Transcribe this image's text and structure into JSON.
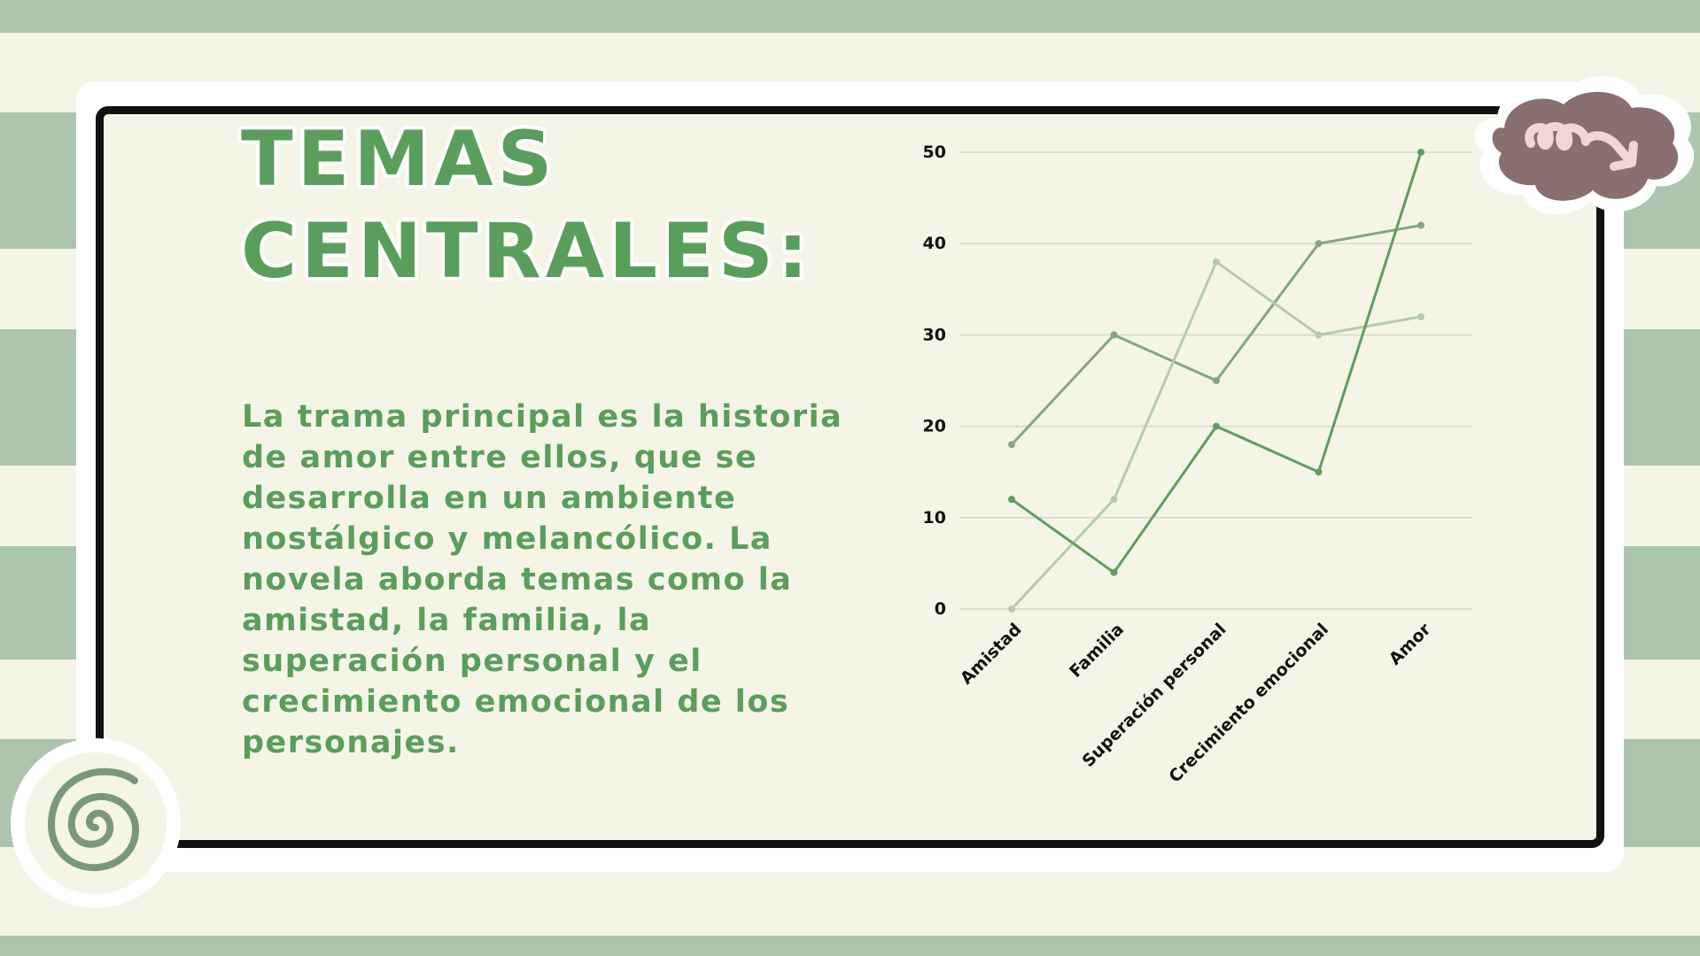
{
  "slide": {
    "title_line1": "TEMAS",
    "title_line2": "CENTRALES:",
    "body": "La trama principal es la historia de amor entre ellos, que se desarrolla en un ambiente nostálgico y melancólico. La novela aborda temas como la amistad, la familia, la superación personal y el crecimiento emocional de los personajes."
  },
  "colors": {
    "background": "#f4f5e6",
    "stripe": "#acc5ae",
    "accent_green": "#5a9e5c",
    "cloud": "#8a6f70",
    "cloud_arrow": "#f0d6d4",
    "spiral": "#79987b"
  },
  "icons": [
    "squiggle-arrow-cloud-icon",
    "spiral-icon"
  ],
  "chart_data": {
    "type": "line",
    "categories": [
      "Amistad",
      "Familia",
      "Superación personal",
      "Crecimiento emocional",
      "Amor"
    ],
    "ylim": [
      0,
      50
    ],
    "yticks": [
      0,
      10,
      20,
      30,
      40,
      50
    ],
    "grid": true,
    "title": "",
    "xlabel": "",
    "ylabel": "",
    "series": [
      {
        "values": [
          18,
          30,
          25,
          40,
          42
        ],
        "color": "#86a586"
      },
      {
        "values": [
          0,
          12,
          38,
          30,
          32
        ],
        "color": "#b5cab4"
      },
      {
        "values": [
          12,
          4,
          20,
          15,
          50
        ],
        "color": "#5f9d60"
      }
    ]
  }
}
